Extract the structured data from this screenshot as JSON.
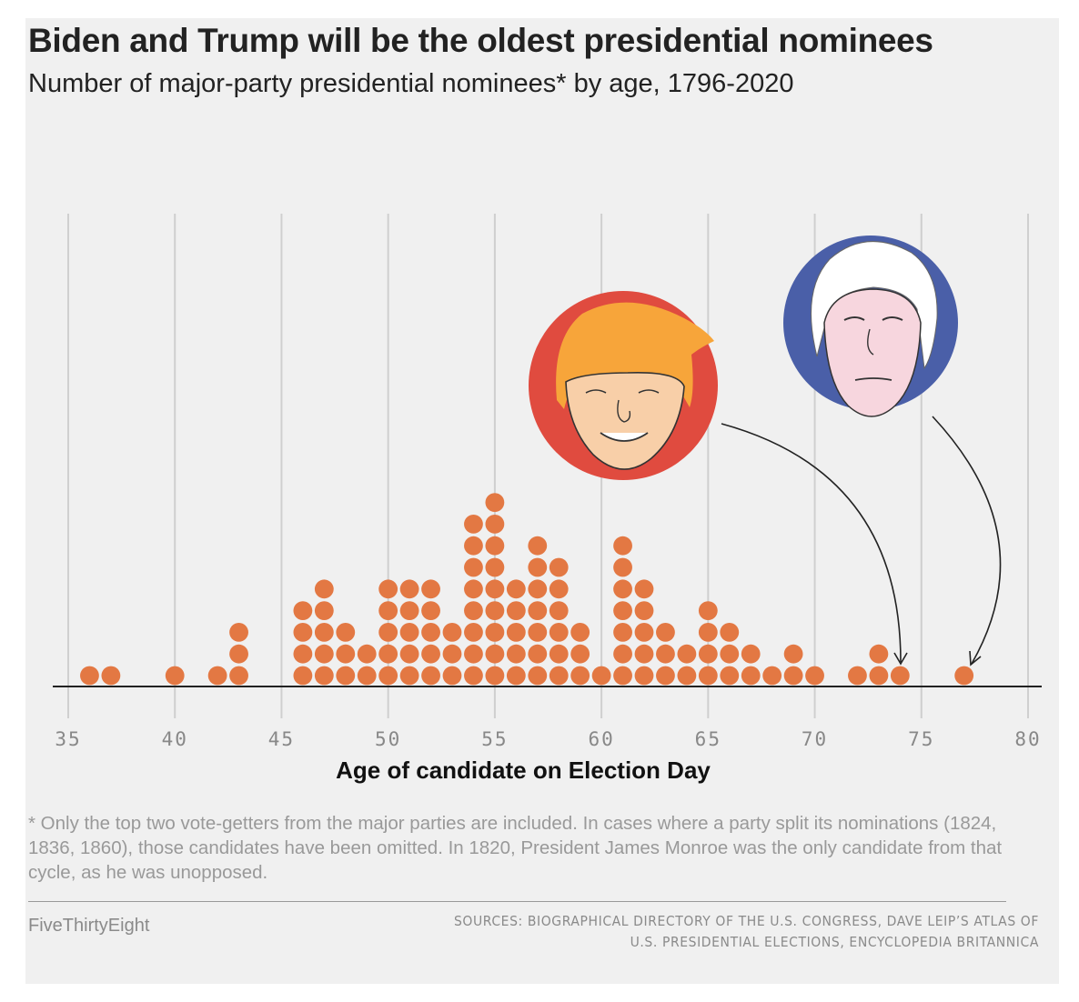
{
  "header": {
    "title": "Biden and Trump will be the oldest presidential nominees",
    "subtitle": "Number of major-party presidential nominees* by age, 1796-2020"
  },
  "footer": {
    "footnote": "* Only the top two vote-getters from the major parties are included. In cases where a party split its nominations (1824, 1836, 1860), those candidates have been omitted. In 1820, President James Monroe was the only candidate from that cycle, as he was unopposed.",
    "brand": "FiveThirtyEight",
    "sources_line1": "SOURCES: BIOGRAPHICAL DIRECTORY OF THE U.S. CONGRESS, DAVE LEIP’S ATLAS OF",
    "sources_line2": "U.S. PRESIDENTIAL ELECTIONS, ENCYCLOPEDIA BRITANNICA"
  },
  "chart_data": {
    "type": "scatter",
    "title": "Biden and Trump will be the oldest presidential nominees",
    "subtitle": "Number of major-party presidential nominees* by age, 1796-2020",
    "xlabel": "Age of candidate on Election Day",
    "ylabel": "",
    "xlim": [
      35,
      80
    ],
    "xticks": [
      35,
      40,
      45,
      50,
      55,
      60,
      65,
      70,
      75,
      80
    ],
    "grid": true,
    "ages": [
      36,
      37,
      40,
      42,
      43,
      46,
      47,
      48,
      49,
      50,
      51,
      52,
      53,
      54,
      55,
      56,
      57,
      58,
      59,
      60,
      61,
      62,
      63,
      64,
      65,
      66,
      67,
      68,
      69,
      70,
      72,
      73,
      74,
      77
    ],
    "counts": [
      1,
      1,
      1,
      1,
      3,
      4,
      5,
      3,
      2,
      5,
      5,
      5,
      3,
      8,
      9,
      5,
      7,
      6,
      3,
      1,
      7,
      5,
      3,
      2,
      4,
      3,
      2,
      1,
      2,
      1,
      1,
      2,
      1,
      1
    ],
    "annotations": [
      {
        "label": "Trump",
        "age": 74,
        "portrait_color": "#e04b3f"
      },
      {
        "label": "Biden",
        "age": 77,
        "portrait_color": "#4a5fa8"
      }
    ],
    "dot_color": "#e37843"
  }
}
